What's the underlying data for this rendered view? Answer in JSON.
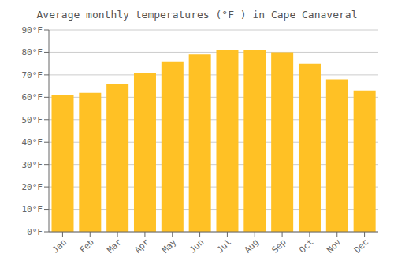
{
  "chart_data": {
    "type": "bar",
    "title": "Average monthly temperatures (°F ) in Cape Canaveral",
    "categories": [
      "Jan",
      "Feb",
      "Mar",
      "Apr",
      "May",
      "Jun",
      "Jul",
      "Aug",
      "Sep",
      "Oct",
      "Nov",
      "Dec"
    ],
    "values": [
      61,
      62,
      66,
      71,
      76,
      79,
      81,
      81,
      80,
      75,
      68,
      63
    ],
    "color": "#FFC125",
    "ylim": [
      0,
      90
    ],
    "yticks": [
      {
        "value": 0,
        "label": "0°F"
      },
      {
        "value": 10,
        "label": "10°F"
      },
      {
        "value": 20,
        "label": "20°F"
      },
      {
        "value": 30,
        "label": "30°F"
      },
      {
        "value": 40,
        "label": "40°F"
      },
      {
        "value": 50,
        "label": "50°F"
      },
      {
        "value": 60,
        "label": "60°F"
      },
      {
        "value": 70,
        "label": "70°F"
      },
      {
        "value": 80,
        "label": "80°F"
      },
      {
        "value": 90,
        "label": "90°F"
      }
    ],
    "grid": true
  }
}
